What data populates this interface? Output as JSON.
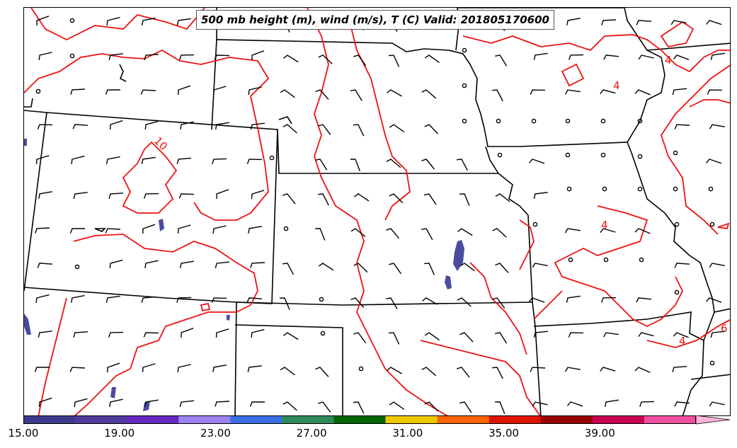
{
  "title": "500 mb height (m), wind (m/s), T (C) Valid: 201805170600",
  "colors": {
    "contour": "#ee1111",
    "state_lines": "#000000",
    "shading": "#4b4b9f",
    "barbs": "#000000"
  },
  "contour_labels": [
    "10",
    "4",
    "4",
    "4",
    "4",
    "6"
  ],
  "colorbar": {
    "tick_labels": [
      "15.00",
      "19.00",
      "23.00",
      "27.00",
      "31.00",
      "35.00",
      "39.00"
    ],
    "tick_values": [
      15,
      19,
      23,
      27,
      31,
      35,
      39
    ],
    "min": 15,
    "max": 43,
    "extend": "max",
    "colors": [
      "#3c3c8c",
      "#503c9c",
      "#6428be",
      "#9e82f0",
      "#3c6ee6",
      "#2e8b57",
      "#006400",
      "#f0c800",
      "#ff6400",
      "#dc1400",
      "#960000",
      "#c80050",
      "#f050a0",
      "#ffb4dc"
    ]
  }
}
